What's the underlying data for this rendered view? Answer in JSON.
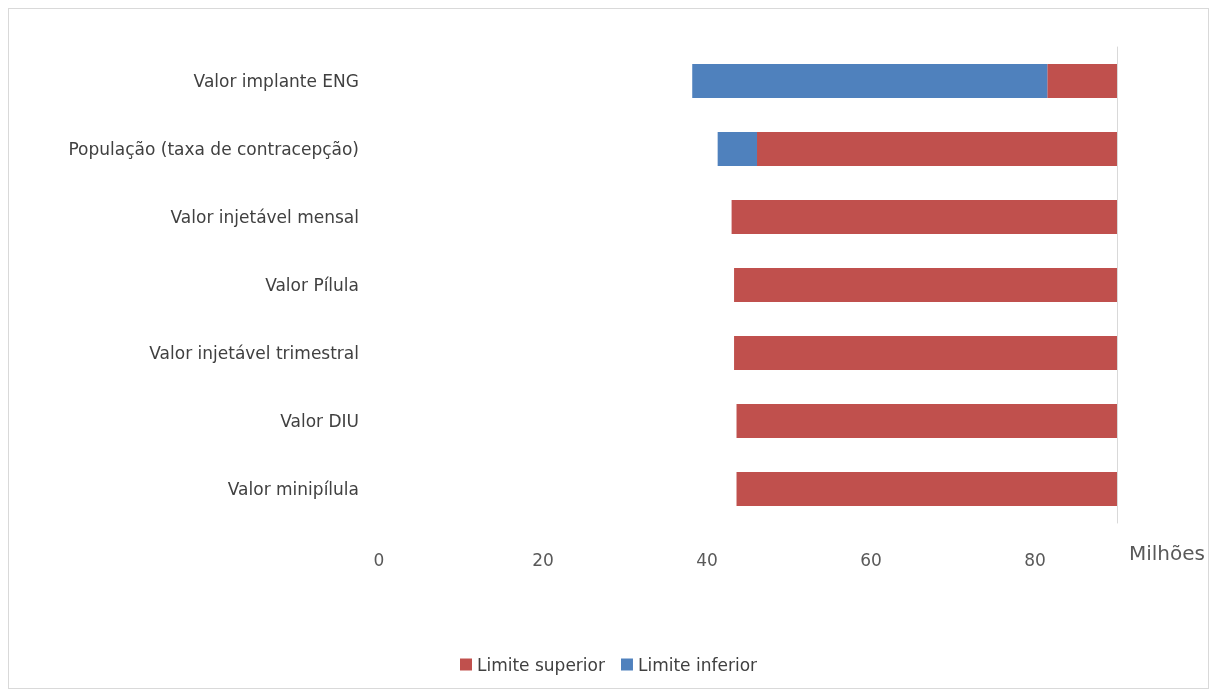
{
  "chart_data": {
    "type": "bar",
    "orientation": "horizontal",
    "xlabel": "Milhões",
    "categories": [
      "Valor implante ENG",
      "População (taxa de contracepção)",
      "Valor injetável mensal",
      "Valor Pílula",
      "Valor injetável trimestral",
      "Valor DIU",
      "Valor minipílula"
    ],
    "series": [
      {
        "name": "Limite superior",
        "color": "#c0504d",
        "base": [
          81.5,
          46.1,
          43.0,
          43.3,
          43.3,
          43.6,
          43.6
        ],
        "values": [
          8.5,
          43.9,
          47.0,
          46.7,
          46.7,
          46.4,
          46.4
        ]
      },
      {
        "name": "Limite inferior",
        "color": "#4f81bd",
        "base": [
          38.2,
          41.3,
          null,
          null,
          null,
          null,
          null
        ],
        "values": [
          43.3,
          4.8,
          null,
          null,
          null,
          null,
          null
        ]
      }
    ],
    "xlim": [
      0,
      90
    ],
    "xticks": [
      0,
      20,
      40,
      60,
      80
    ],
    "grid": false,
    "legend": "bottom"
  }
}
